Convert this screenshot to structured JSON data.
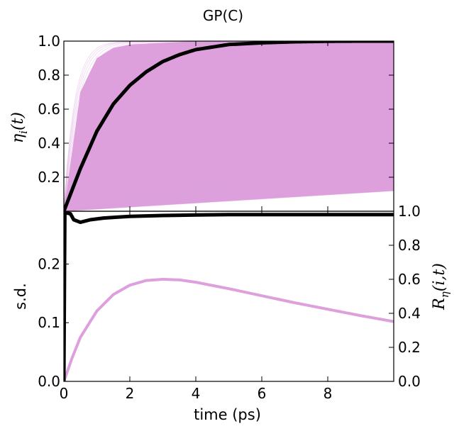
{
  "chart_data": [
    {
      "type": "line",
      "title": "GP(C)",
      "ylabel": "η_i(t)",
      "xlim": [
        0,
        10
      ],
      "ylim": [
        0,
        1.0
      ],
      "yticks": [
        0.2,
        0.4,
        0.6,
        0.8,
        1.0
      ],
      "ytick_labels": [
        "0.2",
        "0.4",
        "0.6",
        "0.8",
        "1.0"
      ],
      "series": [
        {
          "color": "#DDA0DD",
          "style": "many faint trajectories filling 0 to 1",
          "x": [
            0,
            0.5,
            1,
            1.5,
            2,
            3,
            4,
            5,
            6,
            7,
            8,
            9,
            10
          ],
          "values": [
            0,
            0.7,
            0.9,
            0.96,
            0.98,
            0.99,
            1.0,
            1.0,
            1.0,
            1.0,
            1.0,
            1.0,
            1.0
          ]
        },
        {
          "color": "#DDA0DD",
          "style": "lower envelope of trajectories",
          "x": [
            0,
            1,
            2,
            3,
            4,
            5,
            6,
            7,
            8,
            9,
            10
          ],
          "values": [
            0,
            0.012,
            0.024,
            0.036,
            0.048,
            0.06,
            0.072,
            0.084,
            0.096,
            0.108,
            0.12
          ]
        },
        {
          "color": "#000000",
          "style": "mean",
          "x": [
            0,
            0.5,
            1,
            1.5,
            2,
            2.5,
            3,
            3.5,
            4,
            5,
            6,
            7,
            8,
            9,
            10
          ],
          "values": [
            0,
            0.25,
            0.47,
            0.63,
            0.74,
            0.82,
            0.88,
            0.92,
            0.95,
            0.98,
            0.99,
            0.996,
            0.999,
            1.0,
            1.0
          ]
        }
      ]
    },
    {
      "type": "line",
      "xlabel": "time (ps)",
      "ylabel": "s.d.",
      "y2label": "R_η(i,t)",
      "xlim": [
        0,
        10
      ],
      "ylim": [
        0,
        0.29
      ],
      "y2lim": [
        0,
        1.0
      ],
      "xticks": [
        0,
        2,
        4,
        6,
        8
      ],
      "xtick_labels": [
        "0",
        "2",
        "4",
        "6",
        "8"
      ],
      "yticks": [
        0.0,
        0.1,
        0.2
      ],
      "ytick_labels": [
        "0.0",
        "0.1",
        "0.2"
      ],
      "y2ticks": [
        0.0,
        0.2,
        0.4,
        0.6,
        0.8,
        1.0
      ],
      "y2tick_labels": [
        "0.0",
        "0.2",
        "0.4",
        "0.6",
        "0.8",
        "1.0"
      ],
      "series": [
        {
          "color": "#DDA0DD",
          "axis": "left",
          "x": [
            0,
            0.25,
            0.5,
            1,
            1.5,
            2,
            2.5,
            3,
            3.5,
            4,
            5,
            6,
            7,
            8,
            9,
            10
          ],
          "values": [
            0,
            0.04,
            0.075,
            0.12,
            0.148,
            0.164,
            0.172,
            0.174,
            0.173,
            0.169,
            0.158,
            0.146,
            0.134,
            0.123,
            0.112,
            0.102
          ]
        },
        {
          "color": "#000000",
          "axis": "right",
          "x": [
            0,
            0.03,
            0.08,
            0.2,
            0.3,
            0.5,
            0.8,
            1.2,
            1.6,
            2,
            3,
            4,
            5,
            6,
            7,
            8,
            9,
            10
          ],
          "values": [
            0,
            0.99,
            0.99,
            0.985,
            0.95,
            0.935,
            0.95,
            0.96,
            0.965,
            0.97,
            0.975,
            0.978,
            0.98,
            0.98,
            0.98,
            0.98,
            0.98,
            0.98
          ]
        }
      ]
    }
  ]
}
